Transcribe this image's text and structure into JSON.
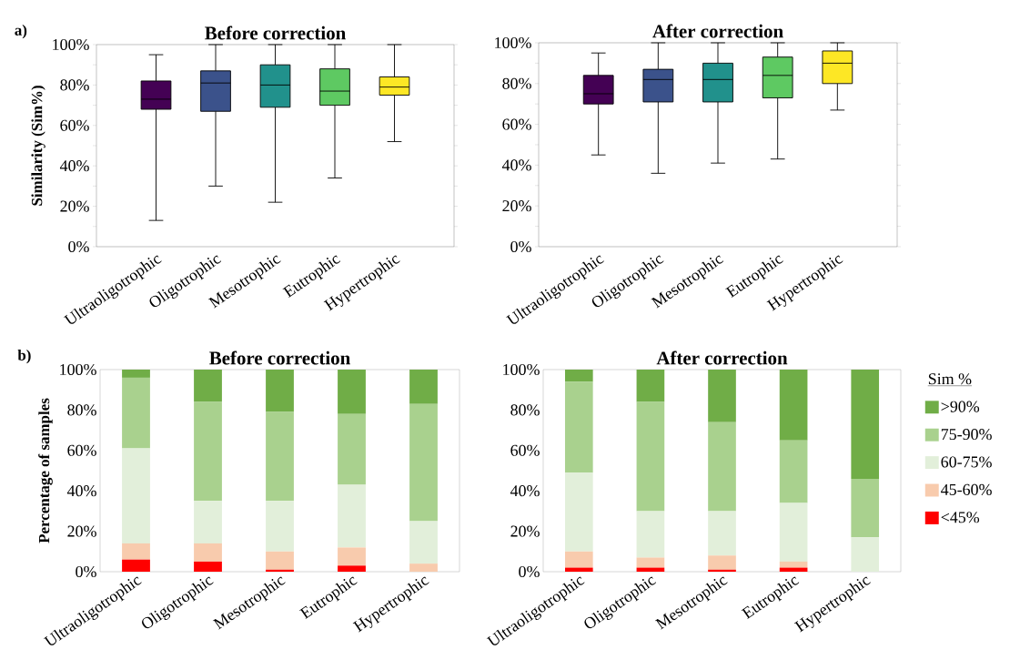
{
  "chart_data": [
    {
      "type": "box",
      "title": "Before correction",
      "ylabel": "Similarity (Sim%)",
      "annotations": [
        "a)"
      ],
      "categories": [
        "Ultraoligotrophic",
        "Oligotrophic",
        "Mesotrophic",
        "Eutrophic",
        "Hypertrophic"
      ],
      "boxes": [
        {
          "low": 13,
          "q1": 68,
          "median": 73,
          "q3": 82,
          "high": 95
        },
        {
          "low": 30,
          "q1": 67,
          "median": 81,
          "q3": 87,
          "high": 100
        },
        {
          "low": 22,
          "q1": 69,
          "median": 80,
          "q3": 90,
          "high": 100
        },
        {
          "low": 34,
          "q1": 70,
          "median": 77,
          "q3": 88,
          "high": 100
        },
        {
          "low": 52,
          "q1": 75,
          "median": 79,
          "q3": 84,
          "high": 100
        }
      ],
      "colors": [
        "#440154",
        "#3b528b",
        "#21918c",
        "#5ec962",
        "#fde725"
      ],
      "ylim": [
        0,
        100
      ],
      "yticks": [
        {
          "value": 0,
          "label": "0%"
        },
        {
          "value": 10,
          "label": null
        },
        {
          "value": 20,
          "label": "20%"
        },
        {
          "value": 30,
          "label": null
        },
        {
          "value": 40,
          "label": "40%"
        },
        {
          "value": 50,
          "label": null
        },
        {
          "value": 60,
          "label": "60%"
        },
        {
          "value": 70,
          "label": null
        },
        {
          "value": 80,
          "label": "80%"
        },
        {
          "value": 90,
          "label": null
        },
        {
          "value": 100,
          "label": "100%"
        }
      ]
    },
    {
      "type": "box",
      "title": "After correction",
      "categories": [
        "Ultraoligotrophic",
        "Oligotrophic",
        "Mesotrophic",
        "Eutrophic",
        "Hypertrophic"
      ],
      "boxes": [
        {
          "low": 45,
          "q1": 70,
          "median": 75,
          "q3": 84,
          "high": 95
        },
        {
          "low": 36,
          "q1": 71,
          "median": 82,
          "q3": 87,
          "high": 100
        },
        {
          "low": 41,
          "q1": 71,
          "median": 82,
          "q3": 90,
          "high": 100
        },
        {
          "low": 43,
          "q1": 73,
          "median": 84,
          "q3": 93,
          "high": 100
        },
        {
          "low": 67,
          "q1": 80,
          "median": 90,
          "q3": 96,
          "high": 100
        }
      ],
      "colors": [
        "#440154",
        "#3b528b",
        "#21918c",
        "#5ec962",
        "#fde725"
      ],
      "ylim": [
        0,
        100
      ],
      "yticks": [
        {
          "value": 0,
          "label": "0%"
        },
        {
          "value": 10,
          "label": null
        },
        {
          "value": 20,
          "label": "20%"
        },
        {
          "value": 30,
          "label": null
        },
        {
          "value": 40,
          "label": "40%"
        },
        {
          "value": 50,
          "label": null
        },
        {
          "value": 60,
          "label": "60%"
        },
        {
          "value": 70,
          "label": null
        },
        {
          "value": 80,
          "label": "80%"
        },
        {
          "value": 90,
          "label": null
        },
        {
          "value": 100,
          "label": "100%"
        }
      ]
    },
    {
      "type": "bar",
      "stacked": true,
      "title": "Before correction",
      "ylabel": "Percentage of samples",
      "annotations": [
        "b)"
      ],
      "categories": [
        "Ultraoligotrophic",
        "Oligotrophic",
        "Mesotrophic",
        "Eutrophic",
        "Hypertrophic"
      ],
      "series": [
        {
          "color": "#ff0000",
          "values": [
            6,
            5,
            1,
            3,
            0
          ]
        },
        {
          "color": "#f8cbad",
          "values": [
            8,
            9,
            9,
            9,
            4
          ]
        },
        {
          "color": "#e2efda",
          "values": [
            47,
            21,
            25,
            31,
            21
          ]
        },
        {
          "color": "#a9d18e",
          "values": [
            35,
            49,
            44,
            35,
            58
          ]
        },
        {
          "color": "#70ad47",
          "values": [
            4,
            16,
            21,
            22,
            17
          ]
        }
      ],
      "ylim": [
        0,
        100
      ],
      "yticks": [
        {
          "value": 0,
          "label": "0%"
        },
        {
          "value": 20,
          "label": "20%"
        },
        {
          "value": 40,
          "label": "40%"
        },
        {
          "value": 60,
          "label": "60%"
        },
        {
          "value": 80,
          "label": "80%"
        },
        {
          "value": 100,
          "label": "100%"
        }
      ]
    },
    {
      "type": "bar",
      "stacked": true,
      "title": "After correction",
      "legend": "right",
      "legend_title": "Sim %",
      "categories": [
        "Ultraoligotrophic",
        "Oligotrophic",
        "Mesotrophic",
        "Eutrophic",
        "Hypertrophic"
      ],
      "series": [
        {
          "name": "<45%",
          "color": "#ff0000",
          "values": [
            2,
            2,
            1,
            2,
            0
          ]
        },
        {
          "name": "45-60%",
          "color": "#f8cbad",
          "values": [
            8,
            5,
            7,
            3,
            0
          ]
        },
        {
          "name": "60-75%",
          "color": "#e2efda",
          "values": [
            39,
            23,
            22,
            29,
            17
          ]
        },
        {
          "name": "75-90%",
          "color": "#a9d18e",
          "values": [
            45,
            54,
            44,
            31,
            29
          ]
        },
        {
          "name": ">90%",
          "color": "#70ad47",
          "values": [
            6,
            16,
            26,
            35,
            54
          ]
        }
      ],
      "ylim": [
        0,
        100
      ],
      "yticks": [
        {
          "value": 0,
          "label": "0%"
        },
        {
          "value": 20,
          "label": "20%"
        },
        {
          "value": 40,
          "label": "40%"
        },
        {
          "value": 60,
          "label": "60%"
        },
        {
          "value": 80,
          "label": "80%"
        },
        {
          "value": 100,
          "label": "100%"
        }
      ]
    }
  ]
}
